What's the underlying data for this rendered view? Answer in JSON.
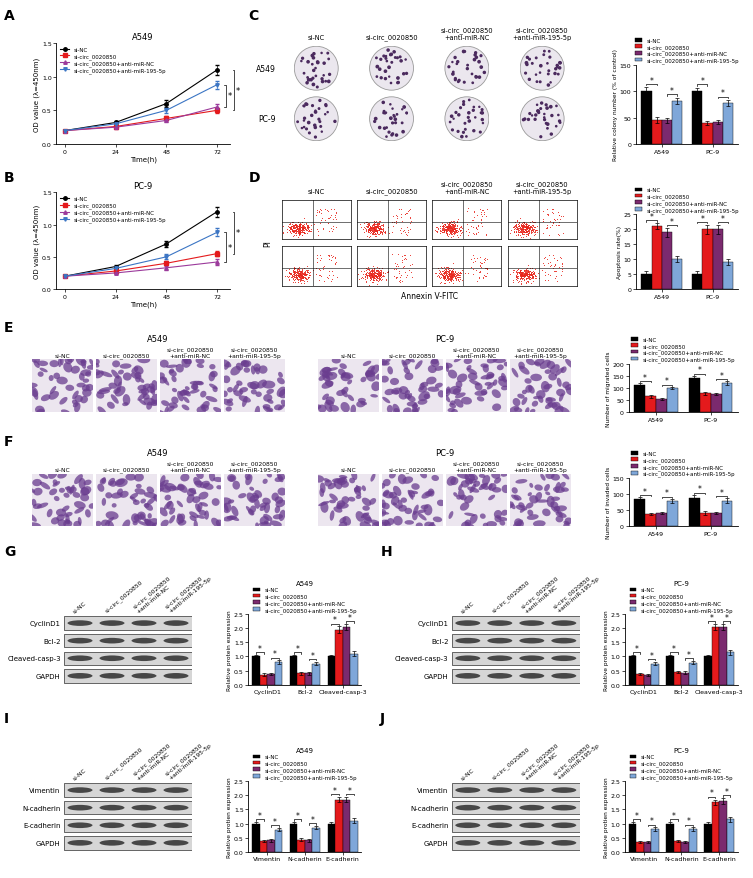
{
  "chart_data": [
    {
      "label": "A",
      "type": "line",
      "title": "A549",
      "xlabel": "Time(h)",
      "ylabel": "OD value (λ=450nm)",
      "x": [
        0,
        24,
        48,
        72
      ],
      "xlim": [
        -4,
        78
      ],
      "xticks": [
        0,
        24,
        48,
        72
      ],
      "ylim": [
        0,
        1.5
      ],
      "yticks": [
        {
          "value": 0,
          "label": "0.0"
        },
        {
          "value": 0.5,
          "label": "0.5"
        },
        {
          "value": 1,
          "label": "1.0"
        },
        {
          "value": 1.5,
          "label": "1.5"
        }
      ],
      "legend": "upper left",
      "annotation": "*",
      "series": [
        {
          "name": "si-NC",
          "color": "#000000",
          "marker": "o",
          "values": [
            0.2,
            0.32,
            0.6,
            1.1
          ],
          "errors": [
            0.01,
            0.02,
            0.05,
            0.08
          ]
        },
        {
          "name": "si-circ_0020850",
          "color": "#e41a1c",
          "marker": "s",
          "values": [
            0.2,
            0.26,
            0.38,
            0.5
          ],
          "errors": [
            0.01,
            0.02,
            0.03,
            0.04
          ]
        },
        {
          "name": "si-circ_0020850+anti-miR-NC",
          "color": "#9b3a9b",
          "marker": "^",
          "values": [
            0.2,
            0.25,
            0.35,
            0.55
          ],
          "errors": [
            0.01,
            0.02,
            0.03,
            0.04
          ]
        },
        {
          "name": "si-circ_0020850+anti-miR-195-5p",
          "color": "#3b75c4",
          "marker": "v",
          "values": [
            0.2,
            0.3,
            0.5,
            0.88
          ],
          "errors": [
            0.01,
            0.02,
            0.04,
            0.06
          ]
        }
      ]
    },
    {
      "label": "B",
      "type": "line",
      "title": "PC-9",
      "xlabel": "Time(h)",
      "ylabel": "OD value (λ=450nm)",
      "x": [
        0,
        24,
        48,
        72
      ],
      "xlim": [
        -4,
        78
      ],
      "xticks": [
        0,
        24,
        48,
        72
      ],
      "ylim": [
        0,
        1.5
      ],
      "yticks": [
        {
          "value": 0,
          "label": "0.0"
        },
        {
          "value": 0.5,
          "label": "0.5"
        },
        {
          "value": 1,
          "label": "1.0"
        },
        {
          "value": 1.5,
          "label": "1.5"
        }
      ],
      "legend": "upper left",
      "annotation": "*",
      "series": [
        {
          "name": "si-NC",
          "color": "#000000",
          "marker": "o",
          "values": [
            0.2,
            0.35,
            0.7,
            1.2
          ],
          "errors": [
            0.01,
            0.03,
            0.05,
            0.08
          ]
        },
        {
          "name": "si-circ_0020850",
          "color": "#e41a1c",
          "marker": "s",
          "values": [
            0.2,
            0.28,
            0.4,
            0.55
          ],
          "errors": [
            0.01,
            0.02,
            0.03,
            0.04
          ]
        },
        {
          "name": "si-circ_0020850+anti-miR-NC",
          "color": "#9b3a9b",
          "marker": "^",
          "values": [
            0.2,
            0.25,
            0.33,
            0.42
          ],
          "errors": [
            0.01,
            0.02,
            0.03,
            0.04
          ]
        },
        {
          "name": "si-circ_0020850+anti-miR-195-5p",
          "color": "#3b75c4",
          "marker": "v",
          "values": [
            0.2,
            0.32,
            0.5,
            0.88
          ],
          "errors": [
            0.01,
            0.02,
            0.04,
            0.06
          ]
        }
      ]
    },
    {
      "type": "bar",
      "ylabel": "Relative colony number (% of control)",
      "categories": [
        "A549",
        "PC-9"
      ],
      "ylim": [
        0,
        150
      ],
      "yticks": [
        0,
        50,
        100,
        150
      ],
      "legend": "upper center",
      "annotation": "*",
      "series": [
        {
          "name": "si-NC",
          "color": "#000000",
          "values": [
            100,
            100
          ],
          "errors": [
            8,
            7
          ]
        },
        {
          "name": "si-circ_0020850",
          "color": "#e41a1c",
          "values": [
            45,
            40
          ],
          "errors": [
            6,
            4
          ]
        },
        {
          "name": "si-circ_0020850+anti-miR-NC",
          "color": "#7b2a6e",
          "values": [
            45,
            42
          ],
          "errors": [
            5,
            4
          ]
        },
        {
          "name": "si-circ_0020850+anti-miR-195-5p",
          "color": "#7fa7d9",
          "values": [
            82,
            78
          ],
          "errors": [
            6,
            6
          ]
        }
      ]
    },
    {
      "type": "bar",
      "ylabel": "Apoptosis rate(%)",
      "categories": [
        "A549",
        "PC-9"
      ],
      "ylim": [
        0,
        25
      ],
      "yticks": [
        0,
        5,
        10,
        15,
        20,
        25
      ],
      "legend": "upper center",
      "annotation": "*",
      "series": [
        {
          "name": "si-NC",
          "color": "#000000",
          "values": [
            5,
            5
          ],
          "errors": [
            1,
            1
          ]
        },
        {
          "name": "si-circ_0020850",
          "color": "#e41a1c",
          "values": [
            21,
            20
          ],
          "errors": [
            1,
            1.5
          ]
        },
        {
          "name": "si-circ_0020850+anti-miR-NC",
          "color": "#7b2a6e",
          "values": [
            19,
            20
          ],
          "errors": [
            1.5,
            1.5
          ]
        },
        {
          "name": "si-circ_0020850+anti-miR-195-5p",
          "color": "#7fa7d9",
          "values": [
            10,
            9
          ],
          "errors": [
            1,
            1
          ]
        }
      ]
    },
    {
      "type": "bar",
      "ylabel": "Number of migrated cells",
      "categories": [
        "A549",
        "PC-9"
      ],
      "ylim": [
        0,
        200
      ],
      "yticks": [
        0,
        50,
        100,
        150,
        200
      ],
      "legend": "upper center",
      "annotation": "*",
      "series": [
        {
          "name": "si-NC",
          "color": "#000000",
          "values": [
            112,
            140
          ],
          "errors": [
            8,
            10
          ]
        },
        {
          "name": "si-circ_0020850",
          "color": "#e41a1c",
          "values": [
            65,
            78
          ],
          "errors": [
            6,
            6
          ]
        },
        {
          "name": "si-circ_0020850+anti-miR-NC",
          "color": "#7b2a6e",
          "values": [
            55,
            75
          ],
          "errors": [
            5,
            6
          ]
        },
        {
          "name": "si-circ_0020850+anti-miR-195-5p",
          "color": "#7fa7d9",
          "values": [
            100,
            120
          ],
          "errors": [
            6,
            8
          ]
        }
      ]
    },
    {
      "type": "bar",
      "ylabel": "Number of invaded cells",
      "categories": [
        "A549",
        "PC-9"
      ],
      "ylim": [
        0,
        150
      ],
      "yticks": [
        0,
        50,
        100,
        150
      ],
      "legend": "upper center",
      "annotation": "*",
      "series": [
        {
          "name": "si-NC",
          "color": "#000000",
          "values": [
            85,
            88
          ],
          "errors": [
            6,
            10
          ]
        },
        {
          "name": "si-circ_0020850",
          "color": "#e41a1c",
          "values": [
            38,
            42
          ],
          "errors": [
            3,
            6
          ]
        },
        {
          "name": "si-circ_0020850+anti-miR-NC",
          "color": "#7b2a6e",
          "values": [
            42,
            42
          ],
          "errors": [
            4,
            4
          ]
        },
        {
          "name": "si-circ_0020850+anti-miR-195-5p",
          "color": "#7fa7d9",
          "values": [
            80,
            80
          ],
          "errors": [
            6,
            8
          ]
        }
      ]
    },
    {
      "type": "bar",
      "title": "A549",
      "ylabel": "Relative protein expression",
      "categories": [
        "CyclinD1",
        "Bcl-2",
        "Cleaved-casp-3"
      ],
      "ylim": [
        0,
        2.5
      ],
      "yticks": [
        {
          "value": 0,
          "label": "0.0"
        },
        {
          "value": 0.5,
          "label": "0.5"
        },
        {
          "value": 1,
          "label": "1.0"
        },
        {
          "value": 1.5,
          "label": "1.5"
        },
        {
          "value": 2,
          "label": "2.0"
        },
        {
          "value": 2.5,
          "label": "2.5"
        }
      ],
      "legend": "upper center",
      "annotation": "*",
      "series": [
        {
          "name": "si-NC",
          "color": "#000000",
          "values": [
            1,
            1,
            1
          ],
          "errors": [
            0.05,
            0.05,
            0.05
          ]
        },
        {
          "name": "si-circ_0020850",
          "color": "#e41a1c",
          "values": [
            0.35,
            0.4,
            1.95
          ],
          "errors": [
            0.05,
            0.05,
            0.12
          ]
        },
        {
          "name": "si-circ_0020850+anti-miR-NC",
          "color": "#7b2a6e",
          "values": [
            0.38,
            0.4,
            2.05
          ],
          "errors": [
            0.05,
            0.05,
            0.1
          ]
        },
        {
          "name": "si-circ_0020850+anti-miR-195-5p",
          "color": "#7fa7d9",
          "values": [
            0.8,
            0.75,
            1.1
          ],
          "errors": [
            0.06,
            0.06,
            0.08
          ]
        }
      ]
    },
    {
      "type": "bar",
      "title": "PC-9",
      "ylabel": "Relative protein expression",
      "categories": [
        "CyclinD1",
        "Bcl-2",
        "Cleaved-casp-3"
      ],
      "ylim": [
        0,
        2.5
      ],
      "yticks": [
        {
          "value": 0,
          "label": "0.0"
        },
        {
          "value": 0.5,
          "label": "0.5"
        },
        {
          "value": 1,
          "label": "1.0"
        },
        {
          "value": 1.5,
          "label": "1.5"
        },
        {
          "value": 2,
          "label": "2.0"
        },
        {
          "value": 2.5,
          "label": "2.5"
        }
      ],
      "legend": "upper center",
      "annotation": "*",
      "series": [
        {
          "name": "si-NC",
          "color": "#000000",
          "values": [
            1,
            1,
            1
          ],
          "errors": [
            0.05,
            0.05,
            0.06
          ]
        },
        {
          "name": "si-circ_0020850",
          "color": "#e41a1c",
          "values": [
            0.38,
            0.45,
            2.05
          ],
          "errors": [
            0.04,
            0.05,
            0.1
          ]
        },
        {
          "name": "si-circ_0020850+anti-miR-NC",
          "color": "#7b2a6e",
          "values": [
            0.35,
            0.43,
            2.05
          ],
          "errors": [
            0.04,
            0.05,
            0.1
          ]
        },
        {
          "name": "si-circ_0020850+anti-miR-195-5p",
          "color": "#7fa7d9",
          "values": [
            0.75,
            0.78,
            1.15
          ],
          "errors": [
            0.06,
            0.06,
            0.08
          ]
        }
      ]
    },
    {
      "type": "bar",
      "title": "A549",
      "ylabel": "Relative protien expression",
      "categories": [
        "Vimentin",
        "N-cadherin",
        "E-cadherin"
      ],
      "ylim": [
        0,
        2.5
      ],
      "yticks": [
        {
          "value": 0,
          "label": "0.0"
        },
        {
          "value": 0.5,
          "label": "0.5"
        },
        {
          "value": 1,
          "label": "1.0"
        },
        {
          "value": 1.5,
          "label": "1.5"
        },
        {
          "value": 2,
          "label": "2.0"
        },
        {
          "value": 2.5,
          "label": "2.5"
        }
      ],
      "legend": "upper center",
      "annotation": "*",
      "series": [
        {
          "name": "si-NC",
          "color": "#000000",
          "values": [
            1,
            1,
            1
          ],
          "errors": [
            0.05,
            0.05,
            0.05
          ]
        },
        {
          "name": "si-circ_0020850",
          "color": "#e41a1c",
          "values": [
            0.38,
            0.42,
            1.85
          ],
          "errors": [
            0.04,
            0.05,
            0.1
          ]
        },
        {
          "name": "si-circ_0020850+anti-miR-NC",
          "color": "#7b2a6e",
          "values": [
            0.4,
            0.4,
            1.85
          ],
          "errors": [
            0.04,
            0.05,
            0.1
          ]
        },
        {
          "name": "si-circ_0020850+anti-miR-195-5p",
          "color": "#7fa7d9",
          "values": [
            0.78,
            0.85,
            1.1
          ],
          "errors": [
            0.06,
            0.06,
            0.08
          ]
        }
      ]
    },
    {
      "type": "bar",
      "title": "PC-9",
      "ylabel": "Relative protien expression",
      "categories": [
        "Vimentin",
        "N-cadherin",
        "E-cadherin"
      ],
      "ylim": [
        0,
        2.5
      ],
      "yticks": [
        {
          "value": 0,
          "label": "0.0"
        },
        {
          "value": 0.5,
          "label": "0.5"
        },
        {
          "value": 1,
          "label": "1.0"
        },
        {
          "value": 1.5,
          "label": "1.5"
        },
        {
          "value": 2,
          "label": "2.0"
        },
        {
          "value": 2.5,
          "label": "2.5"
        }
      ],
      "legend": "upper center",
      "annotation": "*",
      "series": [
        {
          "name": "si-NC",
          "color": "#000000",
          "values": [
            1,
            1,
            1
          ],
          "errors": [
            0.05,
            0.05,
            0.06
          ]
        },
        {
          "name": "si-circ_0020850",
          "color": "#e41a1c",
          "values": [
            0.35,
            0.38,
            1.75
          ],
          "errors": [
            0.04,
            0.05,
            0.1
          ]
        },
        {
          "name": "si-circ_0020850+anti-miR-NC",
          "color": "#7b2a6e",
          "values": [
            0.35,
            0.35,
            1.8
          ],
          "errors": [
            0.04,
            0.04,
            0.1
          ]
        },
        {
          "name": "si-circ_0020850+anti-miR-195-5p",
          "color": "#7fa7d9",
          "values": [
            0.8,
            0.8,
            1.15
          ],
          "errors": [
            0.06,
            0.06,
            0.08
          ]
        }
      ]
    }
  ],
  "image_panels": [
    {
      "label": "C",
      "type": "colony_plates",
      "rows": [
        "A549",
        "PC-9"
      ],
      "columns": [
        "si-NC",
        "si-circ_0020850",
        "si-circ_0020850+anti-miR-NC",
        "si-circ_0020850+anti-miR-195-5p"
      ]
    },
    {
      "label": "D",
      "type": "flow_cytometry",
      "ylabel": "PI",
      "xlabel": "Annexin V-FITC",
      "columns": [
        "si-NC",
        "si-circ_0020850",
        "si-circ_0020850+anti-miR-NC",
        "si-circ_0020850+anti-miR-195-5p"
      ]
    },
    {
      "label": "E",
      "type": "transwell",
      "groups": [
        {
          "title": "A549",
          "columns": [
            "si-NC",
            "si-circ_0020850",
            "si-circ_0020850+anti-miR-NC",
            "si-circ_0020850+anti-miR-195-5p"
          ]
        },
        {
          "title": "PC-9",
          "columns": [
            "si-NC",
            "si-circ_0020850",
            "si-circ_0020850+anti-miR-NC",
            "si-circ_0020850+anti-miR-195-5p"
          ]
        }
      ]
    },
    {
      "label": "F",
      "type": "transwell",
      "groups": [
        {
          "title": "A549",
          "columns": [
            "si-NC",
            "si-circ_0020850",
            "si-circ_0020850+anti-miR-NC",
            "si-circ_0020850+anti-miR-195-5p"
          ]
        },
        {
          "title": "PC-9",
          "columns": [
            "si-NC",
            "si-circ_0020850",
            "si-circ_0020850+anti-miR-NC",
            "si-circ_0020850+anti-miR-195-5p"
          ]
        }
      ]
    },
    {
      "label": "G",
      "type": "western_blot",
      "rows": [
        "CyclinD1",
        "Bcl-2",
        "Cleaved-casp-3",
        "GAPDH"
      ],
      "columns": [
        "si-NC",
        "si-circ_0020850",
        "si-circ_0020850+anti-miR-NC",
        "si-circ_0020850+anti-miR-195-5p"
      ]
    },
    {
      "label": "H",
      "type": "western_blot",
      "rows": [
        "CyclinD1",
        "Bcl-2",
        "Cleaved-casp-3",
        "GAPDH"
      ],
      "columns": [
        "si-NC",
        "si-circ_0020850",
        "si-circ_0020850+anti-miR-NC",
        "si-circ_0020850+anti-miR-195-5p"
      ]
    },
    {
      "label": "I",
      "type": "western_blot",
      "rows": [
        "Vimentin",
        "N-cadherin",
        "E-cadherin",
        "GAPDH"
      ],
      "columns": [
        "si-NC",
        "si-circ_0020850",
        "si-circ_0020850+anti-miR-NC",
        "si-circ_0020850+anti-miR-195-5p"
      ]
    },
    {
      "label": "J",
      "type": "western_blot",
      "rows": [
        "Vimentin",
        "N-cadherin",
        "E-cadherin",
        "GAPDH"
      ],
      "columns": [
        "si-NC",
        "si-circ_0020850",
        "si-circ_0020850+anti-miR-NC",
        "si-circ_0020850+anti-miR-195-5p"
      ]
    }
  ]
}
